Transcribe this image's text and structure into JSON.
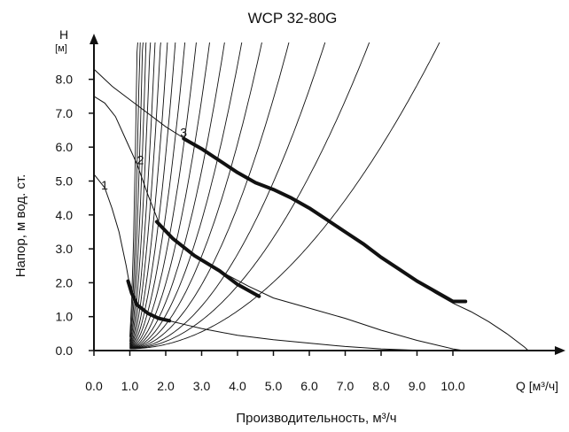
{
  "chart_data": {
    "type": "line",
    "title": "WCP 32-80G",
    "xlabel": "Производительность, м³/ч",
    "ylabel": "Напор, м вод. ст.",
    "x_axis_unit_label": "Q [м³/ч]",
    "y_axis_symbol": "H",
    "y_axis_unit": "[м]",
    "xlim": [
      0,
      12.3
    ],
    "ylim": [
      0,
      9.0
    ],
    "x_ticks": [
      "0.0",
      "1.0",
      "2.0",
      "3.0",
      "4.0",
      "5.0",
      "6.0",
      "7.0",
      "8.0",
      "9.0",
      "10.0"
    ],
    "y_ticks": [
      "0.0",
      "1.0",
      "2.0",
      "3.0",
      "4.0",
      "5.0",
      "6.0",
      "7.0",
      "8.0"
    ],
    "grid": false,
    "series": [
      {
        "name": "1",
        "pump_curve": [
          [
            0.0,
            5.2
          ],
          [
            0.3,
            4.8
          ],
          [
            0.5,
            4.2
          ],
          [
            0.7,
            3.5
          ],
          [
            0.9,
            2.5
          ],
          [
            1.0,
            1.9
          ],
          [
            1.2,
            1.4
          ],
          [
            1.5,
            1.1
          ],
          [
            1.8,
            0.95
          ],
          [
            2.2,
            0.85
          ],
          [
            2.6,
            0.75
          ],
          [
            3.0,
            0.65
          ],
          [
            4.0,
            0.45
          ],
          [
            5.0,
            0.32
          ],
          [
            6.0,
            0.22
          ],
          [
            7.0,
            0.12
          ],
          [
            8.0,
            0.05
          ],
          [
            9.2,
            0.0
          ]
        ],
        "operating_range": [
          [
            0.95,
            2.05
          ],
          [
            1.05,
            1.7
          ],
          [
            1.2,
            1.35
          ],
          [
            1.5,
            1.1
          ],
          [
            1.8,
            0.95
          ],
          [
            2.1,
            0.88
          ]
        ]
      },
      {
        "name": "2",
        "pump_curve": [
          [
            0.0,
            7.5
          ],
          [
            0.3,
            7.3
          ],
          [
            0.6,
            6.9
          ],
          [
            0.9,
            6.2
          ],
          [
            1.2,
            5.5
          ],
          [
            1.5,
            4.6
          ],
          [
            1.8,
            3.8
          ],
          [
            2.2,
            3.3
          ],
          [
            2.8,
            2.8
          ],
          [
            3.5,
            2.35
          ],
          [
            4.3,
            1.9
          ],
          [
            5.0,
            1.55
          ],
          [
            6.0,
            1.25
          ],
          [
            7.0,
            0.95
          ],
          [
            8.0,
            0.6
          ],
          [
            9.0,
            0.3
          ],
          [
            10.0,
            0.05
          ],
          [
            10.3,
            0.0
          ]
        ],
        "operating_range": [
          [
            1.75,
            3.8
          ],
          [
            2.2,
            3.3
          ],
          [
            2.8,
            2.8
          ],
          [
            3.5,
            2.35
          ],
          [
            4.0,
            1.95
          ],
          [
            4.6,
            1.6
          ]
        ]
      },
      {
        "name": "3",
        "pump_curve": [
          [
            0.0,
            8.3
          ],
          [
            0.5,
            7.8
          ],
          [
            1.0,
            7.4
          ],
          [
            1.5,
            7.0
          ],
          [
            2.0,
            6.6
          ],
          [
            2.6,
            6.2
          ],
          [
            3.0,
            5.95
          ],
          [
            3.5,
            5.6
          ],
          [
            4.0,
            5.25
          ],
          [
            4.5,
            4.95
          ],
          [
            5.0,
            4.75
          ],
          [
            5.5,
            4.5
          ],
          [
            6.0,
            4.2
          ],
          [
            6.5,
            3.85
          ],
          [
            7.0,
            3.5
          ],
          [
            7.5,
            3.15
          ],
          [
            8.0,
            2.75
          ],
          [
            8.5,
            2.4
          ],
          [
            9.0,
            2.05
          ],
          [
            9.5,
            1.7
          ],
          [
            10.0,
            1.4
          ],
          [
            10.5,
            1.15
          ],
          [
            11.0,
            0.85
          ],
          [
            11.5,
            0.5
          ],
          [
            12.0,
            0.1
          ],
          [
            12.1,
            0.0
          ]
        ],
        "operating_range": [
          [
            2.5,
            6.25
          ],
          [
            3.0,
            5.95
          ],
          [
            3.5,
            5.6
          ],
          [
            4.0,
            5.25
          ],
          [
            4.5,
            4.95
          ],
          [
            5.0,
            4.75
          ],
          [
            5.5,
            4.5
          ],
          [
            6.0,
            4.2
          ],
          [
            6.5,
            3.85
          ],
          [
            7.0,
            3.5
          ],
          [
            7.5,
            3.15
          ],
          [
            8.0,
            2.75
          ],
          [
            8.5,
            2.4
          ],
          [
            9.0,
            2.05
          ],
          [
            9.5,
            1.75
          ],
          [
            10.0,
            1.45
          ],
          [
            10.35,
            1.45
          ]
        ]
      }
    ],
    "system_curve_coefficients": [
      0.12,
      0.2,
      0.3,
      0.45,
      0.65,
      0.9,
      1.25,
      1.75,
      2.5,
      3.6,
      5.2,
      7.5,
      11,
      16,
      24,
      36,
      55,
      85,
      140
    ]
  }
}
